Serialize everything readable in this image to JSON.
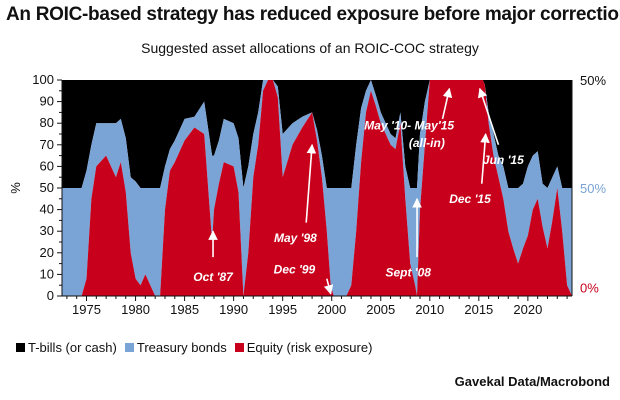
{
  "title": "An ROIC-based strategy has reduced exposure before major corrections",
  "subtitle": "Suggested asset allocations of an ROIC-COC strategy",
  "source": "Gavekal Data/Macrobond",
  "colors": {
    "tbills": "#000000",
    "bonds": "#7aa3d6",
    "equity": "#c8001c"
  },
  "chart_data": {
    "type": "area",
    "stacked": true,
    "title": "Suggested asset allocations of an ROIC-COC strategy",
    "ylabel": "%",
    "ylim": [
      0,
      100
    ],
    "xlim": [
      1972.5,
      2024.5
    ],
    "x_ticks": [
      "1975",
      "1980",
      "1985",
      "1990",
      "1995",
      "2000",
      "2005",
      "2010",
      "2015",
      "2020"
    ],
    "y_ticks": [
      "0",
      "5",
      "10",
      "15",
      "20",
      "25",
      "30",
      "35",
      "40",
      "45",
      "50",
      "55",
      "60",
      "65",
      "70",
      "75",
      "80",
      "85",
      "90",
      "95",
      "100"
    ],
    "right_axis_labels": [
      {
        "text": "50%",
        "series": "T-bills (or cash)",
        "y": 100
      },
      {
        "text": "50%",
        "series": "Treasury bonds",
        "y": 50
      },
      {
        "text": "0%",
        "series": "Equity (risk exposure)",
        "y": 4
      }
    ],
    "legend": [
      "T-bills (or cash)",
      "Treasury bonds",
      "Equity (risk exposure)"
    ],
    "legend_position": "bottom",
    "x": [
      1972.5,
      1974.0,
      1974.5,
      1975.0,
      1975.5,
      1976.0,
      1977.0,
      1978.0,
      1978.5,
      1979.0,
      1979.5,
      1980.0,
      1980.5,
      1981.0,
      1981.5,
      1982.0,
      1982.5,
      1983.0,
      1983.5,
      1984.0,
      1985.0,
      1986.0,
      1987.0,
      1987.8,
      1988.0,
      1988.5,
      1989.0,
      1990.0,
      1990.5,
      1991.0,
      1991.5,
      1992.0,
      1992.5,
      1993.0,
      1993.5,
      1994.0,
      1994.5,
      1995.0,
      1996.0,
      1997.0,
      1998.0,
      1998.5,
      1999.0,
      1999.5,
      1999.9,
      2000.2,
      2001.0,
      2001.5,
      2002.0,
      2002.5,
      2003.0,
      2003.5,
      2004.0,
      2004.5,
      2005.0,
      2005.5,
      2006.0,
      2006.5,
      2007.0,
      2007.5,
      2008.0,
      2008.5,
      2008.7,
      2009.0,
      2009.5,
      2010.0,
      2010.4,
      2011.0,
      2012.0,
      2013.0,
      2014.0,
      2015.0,
      2015.4,
      2015.6,
      2016.0,
      2016.5,
      2017.0,
      2017.5,
      2018.0,
      2018.5,
      2019.0,
      2019.5,
      2020.0,
      2020.5,
      2021.0,
      2021.5,
      2022.0,
      2022.5,
      2023.0,
      2023.5,
      2024.0,
      2024.5
    ],
    "series": [
      {
        "name": "Equity (risk exposure)",
        "values": [
          0,
          0,
          0,
          8,
          45,
          60,
          65,
          55,
          62,
          48,
          20,
          8,
          5,
          10,
          5,
          0,
          0,
          40,
          58,
          62,
          72,
          78,
          75,
          25,
          40,
          52,
          62,
          60,
          48,
          0,
          20,
          55,
          70,
          95,
          100,
          100,
          92,
          55,
          70,
          78,
          85,
          72,
          55,
          30,
          5,
          0,
          0,
          0,
          5,
          30,
          62,
          85,
          95,
          88,
          80,
          75,
          70,
          68,
          80,
          45,
          15,
          5,
          0,
          40,
          70,
          100,
          100,
          100,
          100,
          100,
          100,
          100,
          100,
          98,
          80,
          65,
          55,
          45,
          30,
          22,
          15,
          22,
          28,
          40,
          45,
          32,
          22,
          35,
          50,
          30,
          5,
          0
        ]
      },
      {
        "name": "Treasury bonds",
        "values": [
          50,
          50,
          50,
          50,
          25,
          20,
          15,
          25,
          20,
          25,
          35,
          45,
          45,
          40,
          45,
          50,
          50,
          20,
          10,
          10,
          10,
          5,
          15,
          40,
          25,
          20,
          20,
          20,
          25,
          50,
          40,
          20,
          15,
          5,
          0,
          0,
          5,
          20,
          10,
          5,
          0,
          5,
          10,
          20,
          45,
          50,
          50,
          50,
          45,
          40,
          25,
          10,
          5,
          5,
          5,
          5,
          5,
          5,
          5,
          15,
          35,
          45,
          50,
          35,
          20,
          0,
          0,
          0,
          0,
          0,
          0,
          0,
          0,
          0,
          5,
          10,
          10,
          15,
          20,
          28,
          35,
          30,
          32,
          25,
          22,
          20,
          28,
          20,
          10,
          20,
          45,
          50
        ]
      },
      {
        "name": "T-bills (or cash)",
        "values": [
          50,
          50,
          50,
          42,
          30,
          20,
          20,
          20,
          18,
          27,
          45,
          47,
          50,
          50,
          50,
          50,
          50,
          40,
          32,
          28,
          18,
          17,
          10,
          35,
          35,
          28,
          18,
          20,
          27,
          50,
          40,
          25,
          15,
          0,
          0,
          0,
          3,
          25,
          20,
          17,
          15,
          23,
          35,
          50,
          50,
          50,
          50,
          50,
          50,
          30,
          13,
          5,
          0,
          7,
          15,
          20,
          25,
          27,
          15,
          40,
          50,
          50,
          50,
          25,
          10,
          0,
          0,
          0,
          0,
          0,
          0,
          0,
          0,
          2,
          15,
          25,
          35,
          40,
          50,
          50,
          50,
          48,
          40,
          35,
          33,
          48,
          50,
          45,
          40,
          50,
          50,
          50
        ]
      }
    ],
    "annotations": [
      {
        "text": "Oct '87",
        "x": 1987.8,
        "y": 30
      },
      {
        "text": "May '98",
        "x": 1998.4,
        "y": 70
      },
      {
        "text": "Dec '99",
        "x": 1999.9,
        "y": 5
      },
      {
        "text": "Sept '08",
        "x": 2008.7,
        "y": 42
      },
      {
        "text": "May '10- May'15",
        "x": 2012.5,
        "y": 98
      },
      {
        "text": "(all-in)",
        "x": 2012.5,
        "y": 98
      },
      {
        "text": "Dec '15",
        "x": 2015.9,
        "y": 78
      },
      {
        "text": "Jun '15",
        "x": 2015.4,
        "y": 96
      }
    ]
  }
}
